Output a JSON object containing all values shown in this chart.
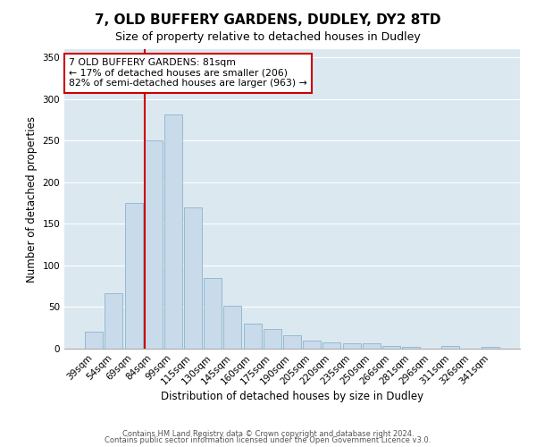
{
  "title": "7, OLD BUFFERY GARDENS, DUDLEY, DY2 8TD",
  "subtitle": "Size of property relative to detached houses in Dudley",
  "xlabel": "Distribution of detached houses by size in Dudley",
  "ylabel": "Number of detached properties",
  "bar_labels": [
    "39sqm",
    "54sqm",
    "69sqm",
    "84sqm",
    "99sqm",
    "115sqm",
    "130sqm",
    "145sqm",
    "160sqm",
    "175sqm",
    "190sqm",
    "205sqm",
    "220sqm",
    "235sqm",
    "250sqm",
    "266sqm",
    "281sqm",
    "296sqm",
    "311sqm",
    "326sqm",
    "341sqm"
  ],
  "bar_values": [
    20,
    67,
    175,
    250,
    282,
    170,
    85,
    52,
    30,
    24,
    16,
    10,
    8,
    6,
    6,
    3,
    2,
    0,
    3,
    0,
    2
  ],
  "bar_color": "#c9daea",
  "bar_edge_color": "#8ab4cc",
  "vline_color": "#cc0000",
  "vline_index": 3,
  "ylim": [
    0,
    360
  ],
  "yticks": [
    0,
    50,
    100,
    150,
    200,
    250,
    300,
    350
  ],
  "annotation_line1": "7 OLD BUFFERY GARDENS: 81sqm",
  "annotation_line2": "← 17% of detached houses are smaller (206)",
  "annotation_line3": "82% of semi-detached houses are larger (963) →",
  "annotation_box_color": "#ffffff",
  "annotation_border_color": "#cc0000",
  "footer1": "Contains HM Land Registry data © Crown copyright and database right 2024.",
  "footer2": "Contains public sector information licensed under the Open Government Licence v3.0.",
  "fig_bg_color": "#ffffff",
  "plot_bg_color": "#dce8f0",
  "grid_color": "#ffffff",
  "title_fontsize": 11,
  "subtitle_fontsize": 9,
  "axis_label_fontsize": 8.5,
  "tick_fontsize": 7.5
}
